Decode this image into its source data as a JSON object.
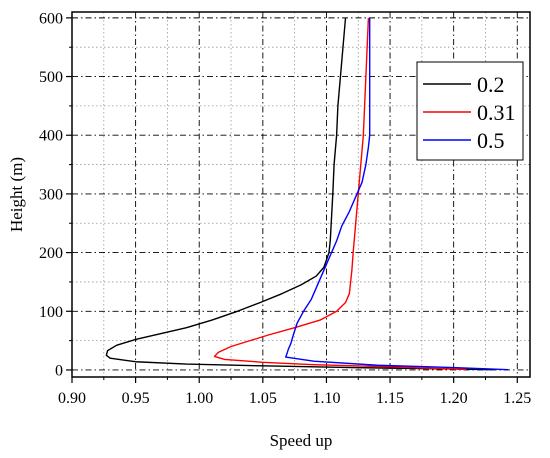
{
  "chart_data": {
    "type": "line",
    "title": "",
    "xlabel": "Speed up",
    "ylabel": "Height (m)",
    "xlim": [
      0.9,
      1.26
    ],
    "ylim": [
      -12,
      610
    ],
    "xticks": [
      0.9,
      0.95,
      1.0,
      1.05,
      1.1,
      1.15,
      1.2,
      1.25
    ],
    "xtick_labels": [
      "0.90",
      "0.95",
      "1.00",
      "1.05",
      "1.10",
      "1.15",
      "1.20",
      "1.25"
    ],
    "yticks": [
      0,
      100,
      200,
      300,
      400,
      500,
      600
    ],
    "ytick_labels": [
      "0",
      "100",
      "200",
      "300",
      "400",
      "500",
      "600"
    ],
    "grid": true,
    "legend_position": "top-right",
    "series": [
      {
        "name": "0.2",
        "color": "#000000",
        "points": [
          [
            1.115,
            600
          ],
          [
            1.113,
            550
          ],
          [
            1.111,
            500
          ],
          [
            1.109,
            450
          ],
          [
            1.108,
            400
          ],
          [
            1.106,
            350
          ],
          [
            1.105,
            300
          ],
          [
            1.104,
            260
          ],
          [
            1.103,
            220
          ],
          [
            1.102,
            200
          ],
          [
            1.098,
            175
          ],
          [
            1.092,
            160
          ],
          [
            1.08,
            145
          ],
          [
            1.065,
            130
          ],
          [
            1.048,
            115
          ],
          [
            1.03,
            100
          ],
          [
            1.01,
            85
          ],
          [
            0.99,
            72
          ],
          [
            0.97,
            62
          ],
          [
            0.95,
            52
          ],
          [
            0.935,
            42
          ],
          [
            0.928,
            33
          ],
          [
            0.927,
            25
          ],
          [
            0.93,
            20
          ],
          [
            0.95,
            14
          ],
          [
            0.99,
            10
          ],
          [
            1.05,
            7
          ],
          [
            1.12,
            4
          ],
          [
            1.19,
            2
          ],
          [
            1.23,
            0.5
          ]
        ]
      },
      {
        "name": "0.31",
        "color": "#ff0000",
        "points": [
          [
            1.133,
            600
          ],
          [
            1.132,
            550
          ],
          [
            1.131,
            500
          ],
          [
            1.13,
            450
          ],
          [
            1.129,
            400
          ],
          [
            1.127,
            350
          ],
          [
            1.125,
            300
          ],
          [
            1.123,
            250
          ],
          [
            1.121,
            200
          ],
          [
            1.12,
            170
          ],
          [
            1.119,
            150
          ],
          [
            1.118,
            130
          ],
          [
            1.115,
            115
          ],
          [
            1.108,
            100
          ],
          [
            1.095,
            85
          ],
          [
            1.075,
            72
          ],
          [
            1.055,
            60
          ],
          [
            1.04,
            50
          ],
          [
            1.025,
            40
          ],
          [
            1.015,
            30
          ],
          [
            1.012,
            23
          ],
          [
            1.02,
            18
          ],
          [
            1.05,
            13
          ],
          [
            1.09,
            9
          ],
          [
            1.14,
            6
          ],
          [
            1.18,
            3
          ],
          [
            1.21,
            1
          ]
        ]
      },
      {
        "name": "0.5",
        "color": "#0000ff",
        "points": [
          [
            1.134,
            600
          ],
          [
            1.134,
            550
          ],
          [
            1.134,
            500
          ],
          [
            1.134,
            450
          ],
          [
            1.134,
            400
          ],
          [
            1.133,
            380
          ],
          [
            1.131,
            350
          ],
          [
            1.128,
            320
          ],
          [
            1.124,
            300
          ],
          [
            1.118,
            270
          ],
          [
            1.112,
            245
          ],
          [
            1.108,
            220
          ],
          [
            1.104,
            200
          ],
          [
            1.1,
            180
          ],
          [
            1.096,
            160
          ],
          [
            1.092,
            140
          ],
          [
            1.088,
            120
          ],
          [
            1.082,
            100
          ],
          [
            1.077,
            80
          ],
          [
            1.074,
            60
          ],
          [
            1.072,
            45
          ],
          [
            1.07,
            35
          ],
          [
            1.069,
            28
          ],
          [
            1.068,
            22
          ],
          [
            1.09,
            15
          ],
          [
            1.14,
            8
          ],
          [
            1.2,
            4
          ],
          [
            1.243,
            0.5
          ]
        ]
      }
    ]
  }
}
